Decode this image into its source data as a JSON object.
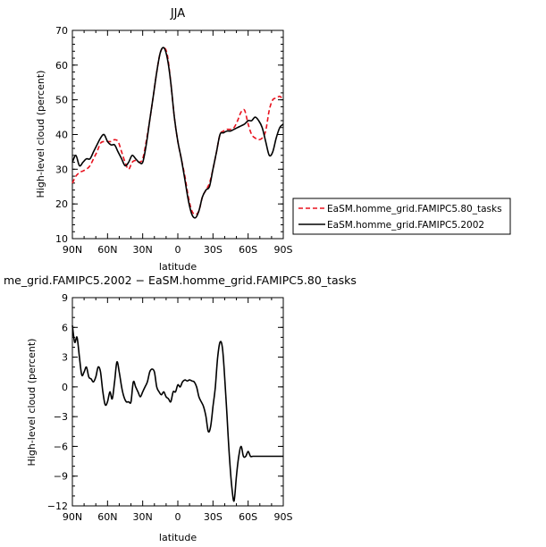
{
  "chart_data": [
    {
      "type": "line",
      "title": "JJA",
      "xlabel": "latitude",
      "ylabel": "High-level cloud (percent)",
      "xlim": [
        -90,
        90
      ],
      "ylim": [
        10,
        70
      ],
      "x_ticks": [
        -90,
        -60,
        -30,
        0,
        30,
        60,
        90
      ],
      "x_tick_labels": [
        "90N",
        "60N",
        "30N",
        "0",
        "30S",
        "60S",
        "90S"
      ],
      "y_ticks": [
        10,
        20,
        30,
        40,
        50,
        60,
        70
      ],
      "y_tick_labels": [
        "10",
        "20",
        "30",
        "40",
        "50",
        "60",
        "70"
      ],
      "legend_placement": "right",
      "series": [
        {
          "name": "EaSM.homme_grid.FAMIPC5.80_tasks",
          "color": "#e8121e",
          "dash": "dashed",
          "x": [
            -90,
            -87,
            -84,
            -81,
            -78,
            -75,
            -72,
            -69,
            -66,
            -63,
            -60,
            -57,
            -54,
            -51,
            -48,
            -45,
            -42,
            -39,
            -36,
            -33,
            -30,
            -27,
            -24,
            -21,
            -18,
            -15,
            -12,
            -9,
            -6,
            -3,
            0,
            3,
            6,
            9,
            12,
            15,
            18,
            21,
            24,
            27,
            30,
            33,
            36,
            39,
            42,
            45,
            48,
            51,
            54,
            57,
            60,
            63,
            66,
            69,
            72,
            75,
            78,
            81,
            84,
            87,
            90
          ],
          "y": [
            26,
            28,
            29,
            29.5,
            30,
            31,
            33,
            35,
            37.5,
            38,
            38,
            38,
            38.5,
            38,
            35,
            32,
            30,
            32,
            32.5,
            32,
            33,
            38,
            44,
            51,
            58,
            63.5,
            65,
            63,
            55,
            45,
            38,
            33,
            28,
            22,
            18,
            17,
            18,
            22,
            24,
            26,
            30,
            35,
            40,
            41,
            41.5,
            41.5,
            42,
            44,
            46.5,
            47,
            43,
            40,
            39,
            38.5,
            39,
            41,
            47,
            50,
            50.5,
            51,
            50
          ]
        },
        {
          "name": "EaSM.homme_grid.FAMIPC5.2002",
          "color": "#000000",
          "dash": "solid",
          "x": [
            -90,
            -87,
            -84,
            -81,
            -78,
            -75,
            -72,
            -69,
            -66,
            -63,
            -60,
            -57,
            -54,
            -51,
            -48,
            -45,
            -42,
            -39,
            -36,
            -33,
            -30,
            -27,
            -24,
            -21,
            -18,
            -15,
            -12,
            -9,
            -6,
            -3,
            0,
            3,
            6,
            9,
            12,
            15,
            18,
            21,
            24,
            27,
            30,
            33,
            36,
            39,
            42,
            45,
            48,
            51,
            54,
            57,
            60,
            63,
            66,
            69,
            72,
            75,
            78,
            81,
            84,
            87,
            90
          ],
          "y": [
            32,
            34,
            31,
            32,
            33,
            33,
            35,
            37,
            39,
            40,
            38,
            37,
            37,
            35,
            33,
            31,
            32,
            34,
            33,
            32,
            32,
            37,
            44,
            51,
            58,
            63.5,
            65,
            62,
            55,
            45,
            38,
            33,
            27,
            21,
            17,
            16,
            18,
            22,
            24,
            25,
            30,
            35,
            40,
            40.5,
            41,
            41,
            41.5,
            42,
            42.5,
            43,
            44,
            44,
            45,
            44,
            42,
            38,
            34,
            35,
            39,
            42,
            43
          ]
        }
      ]
    },
    {
      "type": "line",
      "title": "me_grid.FAMIPC5.2002 − EaSM.homme_grid.FAMIPC5.80_tasks",
      "xlabel": "latitude",
      "ylabel": "High-level cloud (percent)",
      "xlim": [
        -90,
        90
      ],
      "ylim": [
        -12,
        9
      ],
      "x_ticks": [
        -90,
        -60,
        -30,
        0,
        30,
        60,
        90
      ],
      "x_tick_labels": [
        "90N",
        "60N",
        "30N",
        "0",
        "30S",
        "60S",
        "90S"
      ],
      "y_ticks": [
        -12,
        -9,
        -6,
        -3,
        0,
        3,
        6,
        9
      ],
      "y_tick_labels": [
        "−12",
        "−9",
        "−6",
        "−3",
        "0",
        "3",
        "6",
        "9"
      ],
      "series": [
        {
          "color": "#000000",
          "dash": "solid",
          "x": [
            -90,
            -88,
            -86,
            -84,
            -82,
            -80,
            -78,
            -76,
            -74,
            -72,
            -70,
            -68,
            -66,
            -64,
            -62,
            -60,
            -58,
            -56,
            -54,
            -52,
            -50,
            -48,
            -46,
            -44,
            -42,
            -40,
            -38,
            -36,
            -34,
            -32,
            -30,
            -28,
            -26,
            -24,
            -22,
            -20,
            -18,
            -16,
            -14,
            -12,
            -10,
            -8,
            -6,
            -4,
            -2,
            0,
            2,
            4,
            6,
            8,
            10,
            12,
            14,
            16,
            18,
            20,
            22,
            24,
            26,
            28,
            30,
            32,
            34,
            36,
            38,
            40,
            42,
            44,
            46,
            48,
            50,
            52,
            54,
            56,
            58,
            60,
            62,
            64,
            66,
            68,
            70,
            72,
            74,
            76,
            78,
            80,
            82,
            84,
            86,
            88,
            90
          ],
          "y": [
            6.2,
            4.5,
            5,
            3,
            1.2,
            1.5,
            2,
            1,
            0.8,
            0.5,
            1,
            2,
            1.5,
            -0.5,
            -1.8,
            -1.5,
            -0.5,
            -1.2,
            0.5,
            2.5,
            1.5,
            0,
            -1,
            -1.5,
            -1.5,
            -1.5,
            0.5,
            0,
            -0.5,
            -1,
            -0.5,
            0,
            0.5,
            1.5,
            1.8,
            1.5,
            0,
            -0.5,
            -0.8,
            -0.5,
            -1,
            -1.2,
            -1.5,
            -0.5,
            -0.5,
            0.2,
            0,
            0.5,
            0.7,
            0.6,
            0.7,
            0.6,
            0.5,
            0,
            -1,
            -1.5,
            -2,
            -3,
            -4.5,
            -4,
            -2,
            0,
            3,
            4.5,
            4,
            1,
            -3,
            -7,
            -10,
            -11.5,
            -9,
            -7,
            -6,
            -7,
            -7,
            -6.5,
            -7,
            -7,
            -7,
            -7,
            -7,
            -7,
            -7,
            -7,
            -7,
            -7,
            -7,
            -7,
            -7,
            -7,
            -7
          ]
        }
      ]
    }
  ]
}
